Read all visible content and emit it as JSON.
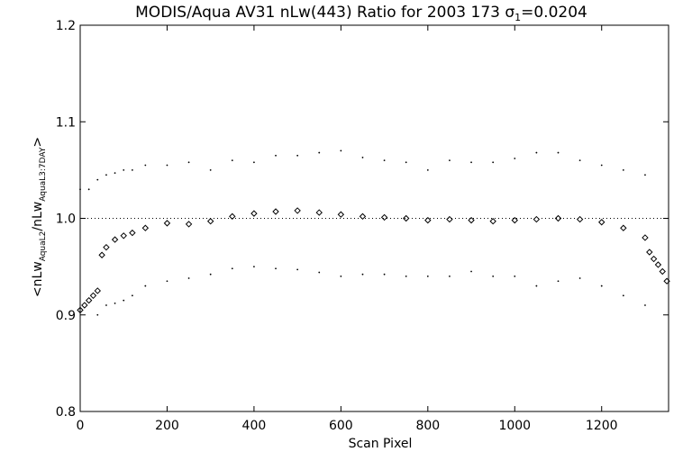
{
  "chart_data": {
    "type": "scatter",
    "title": "MODIS/Aqua AV31 nLw(443) Ratio for 2003 173 σ₁=0.0204",
    "title_parts": {
      "main": "MODIS/Aqua AV31 nLw(443) Ratio for 2003 173 σ",
      "sub": "1",
      "tail": "=0.0204"
    },
    "xlabel": "Scan Pixel",
    "ylabel_parts": {
      "p1": "<nLw",
      "s1": "AquaL2",
      "p2": "/nLw",
      "s2": "AquaL3:7DAY",
      "p3": ">"
    },
    "xlim": [
      0,
      1354
    ],
    "ylim": [
      0.8,
      1.2
    ],
    "x_ticks": [
      0,
      200,
      400,
      600,
      800,
      1000,
      1200
    ],
    "y_ticks": [
      0.8,
      0.9,
      1.0,
      1.1,
      1.2
    ],
    "reference_line": 1.0,
    "grid": false,
    "series": [
      {
        "role": "mean ratio",
        "marker": "diamond",
        "x": [
          0,
          10,
          20,
          30,
          40,
          50,
          60,
          80,
          100,
          120,
          150,
          200,
          250,
          300,
          350,
          400,
          450,
          500,
          550,
          600,
          650,
          700,
          750,
          800,
          850,
          900,
          950,
          1000,
          1050,
          1100,
          1150,
          1200,
          1250,
          1300,
          1310,
          1320,
          1330,
          1340,
          1350
        ],
        "y": [
          0.905,
          0.91,
          0.915,
          0.92,
          0.925,
          0.962,
          0.97,
          0.978,
          0.982,
          0.985,
          0.99,
          0.995,
          0.994,
          0.997,
          1.002,
          1.005,
          1.007,
          1.008,
          1.006,
          1.004,
          1.002,
          1.001,
          1.0,
          0.998,
          0.999,
          0.998,
          0.997,
          0.998,
          0.999,
          1.0,
          0.999,
          0.996,
          0.99,
          0.98,
          0.965,
          0.958,
          0.952,
          0.945,
          0.935
        ]
      },
      {
        "role": "upper bound",
        "marker": "dot",
        "x": [
          0,
          20,
          40,
          60,
          80,
          100,
          120,
          150,
          200,
          250,
          300,
          350,
          400,
          450,
          500,
          550,
          600,
          650,
          700,
          750,
          800,
          850,
          900,
          950,
          1000,
          1050,
          1100,
          1150,
          1200,
          1250,
          1300
        ],
        "y": [
          1.03,
          1.03,
          1.04,
          1.045,
          1.047,
          1.05,
          1.05,
          1.055,
          1.055,
          1.058,
          1.05,
          1.06,
          1.058,
          1.065,
          1.065,
          1.068,
          1.07,
          1.063,
          1.06,
          1.058,
          1.05,
          1.06,
          1.058,
          1.058,
          1.062,
          1.068,
          1.068,
          1.06,
          1.055,
          1.05,
          1.045
        ]
      },
      {
        "role": "lower bound",
        "marker": "dot",
        "x": [
          40,
          60,
          80,
          100,
          120,
          150,
          200,
          250,
          300,
          350,
          400,
          450,
          500,
          550,
          600,
          650,
          700,
          750,
          800,
          850,
          900,
          950,
          1000,
          1050,
          1100,
          1150,
          1200,
          1250,
          1300
        ],
        "y": [
          0.9,
          0.91,
          0.912,
          0.915,
          0.92,
          0.93,
          0.935,
          0.938,
          0.942,
          0.948,
          0.95,
          0.948,
          0.947,
          0.944,
          0.94,
          0.942,
          0.942,
          0.94,
          0.94,
          0.94,
          0.945,
          0.94,
          0.94,
          0.93,
          0.935,
          0.938,
          0.93,
          0.92,
          0.91
        ]
      }
    ]
  }
}
